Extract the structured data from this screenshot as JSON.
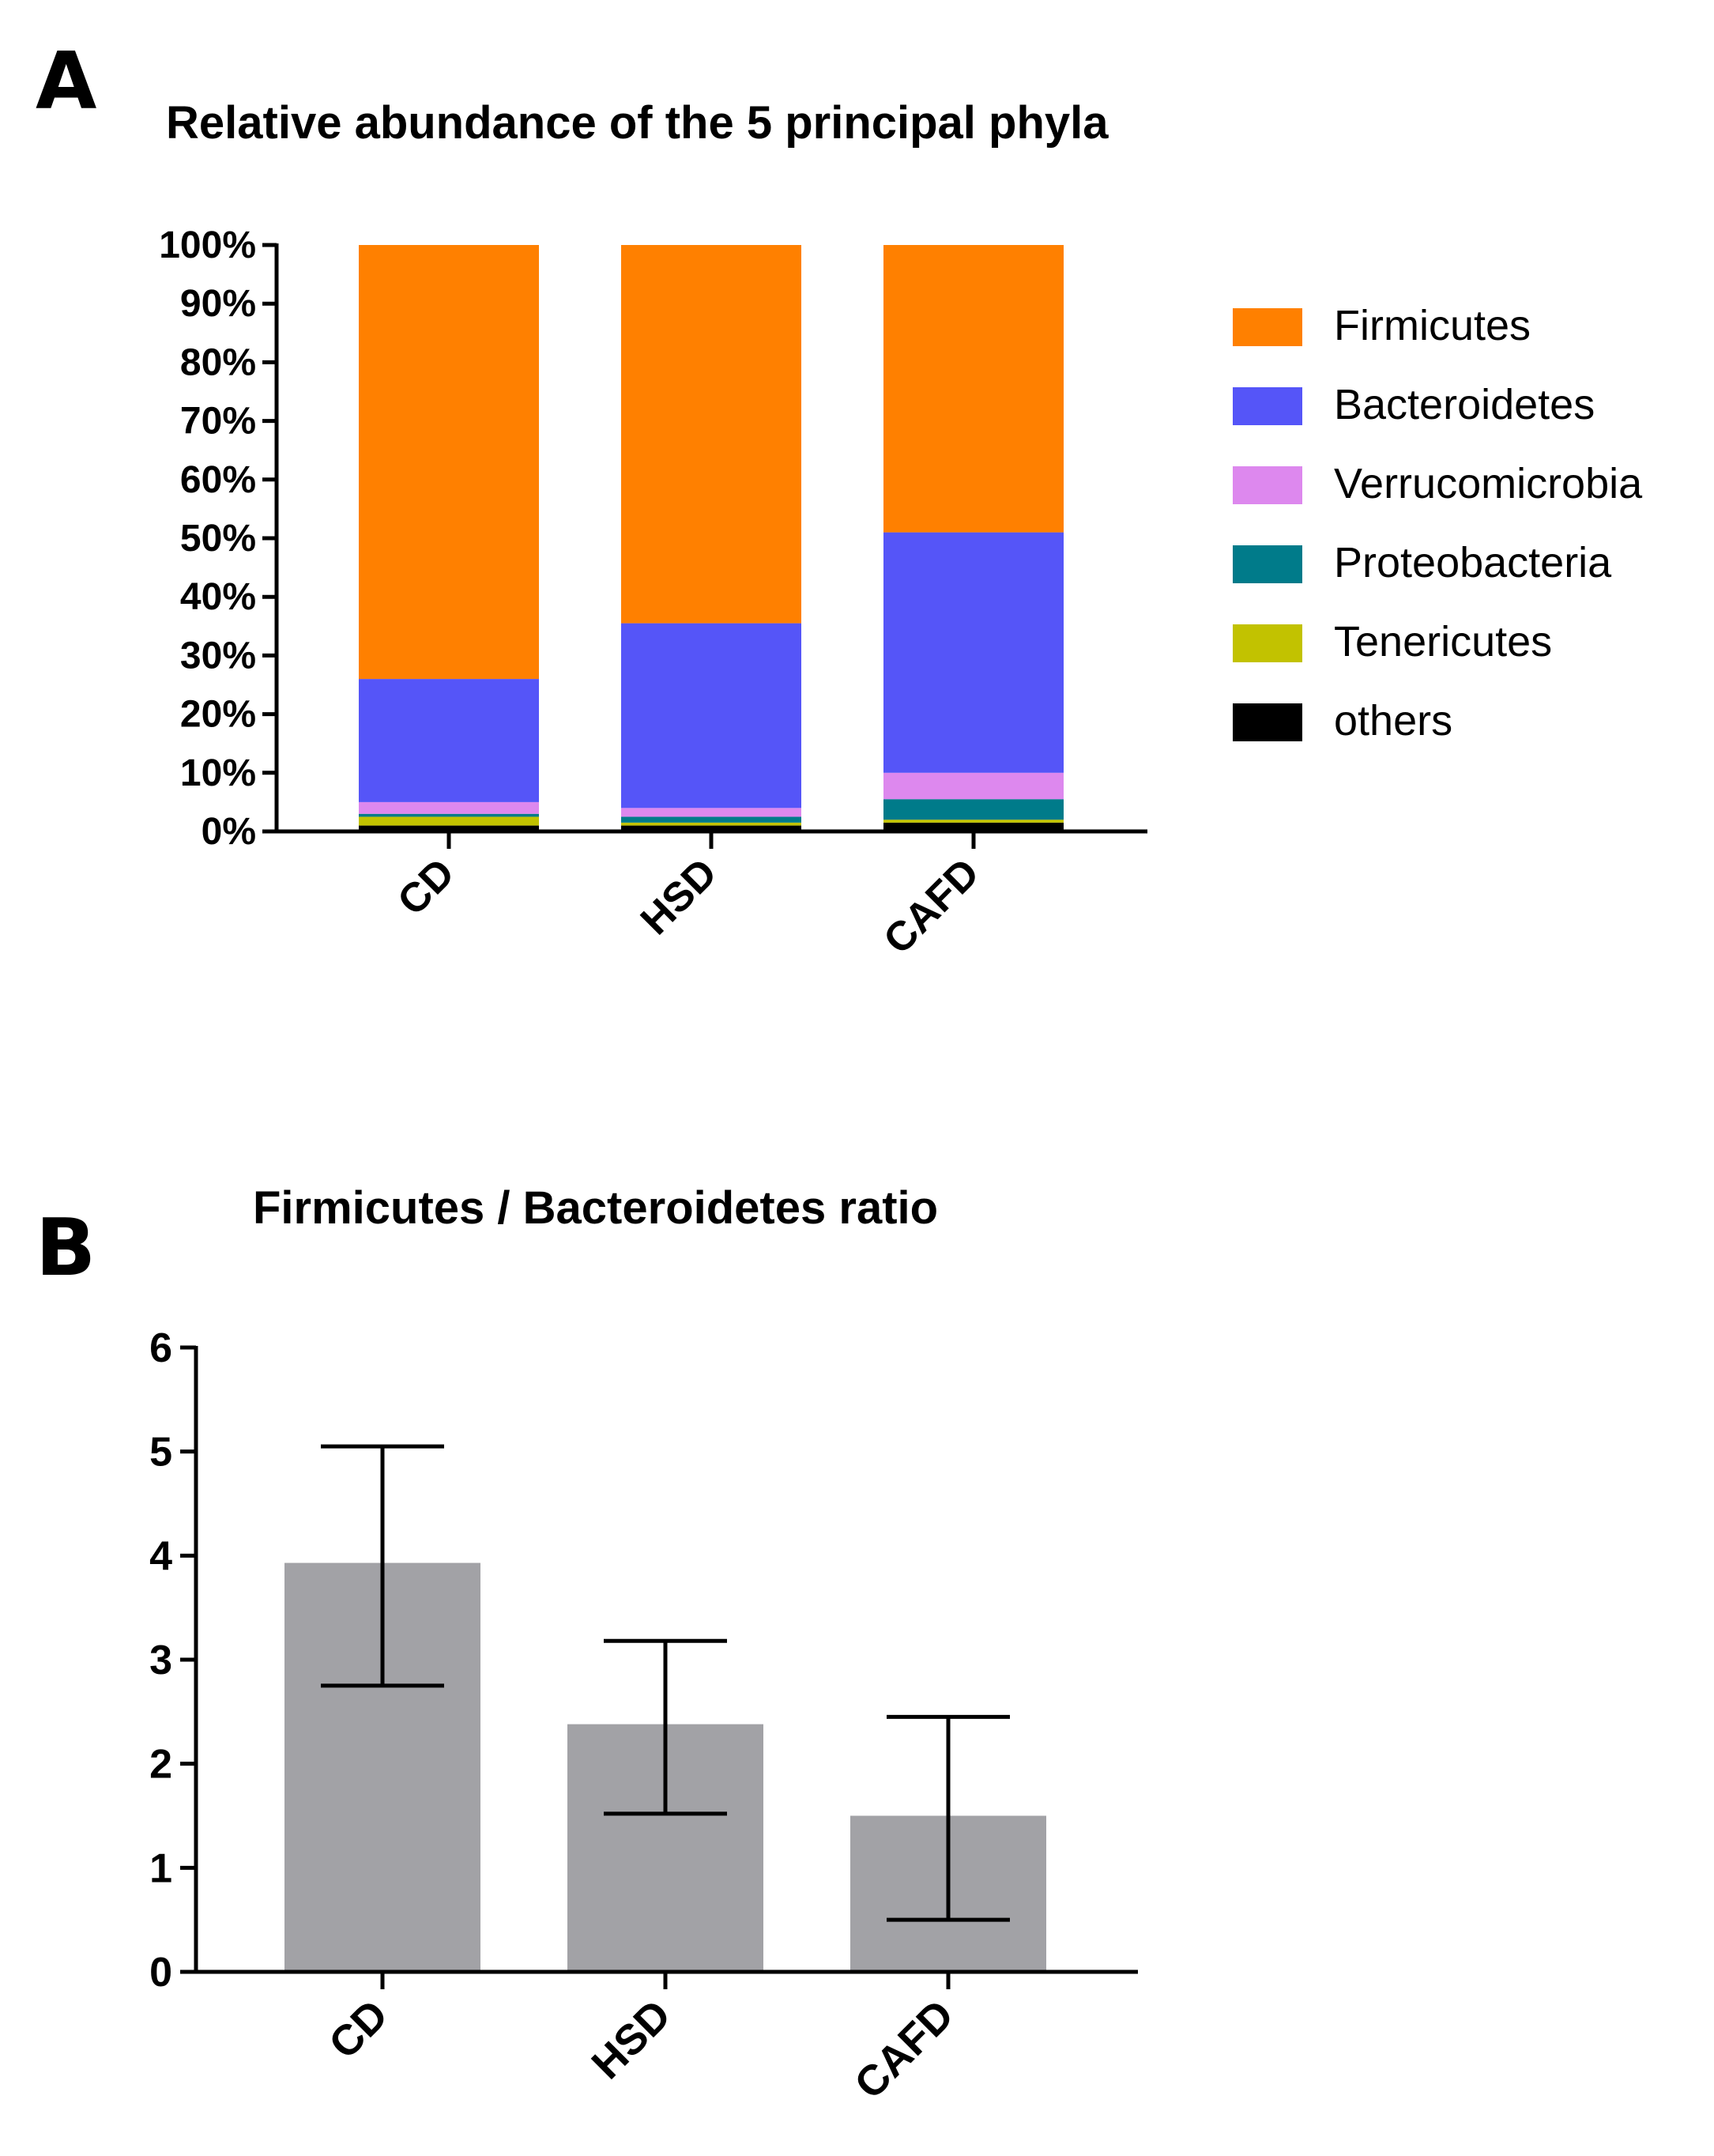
{
  "chart_data": [
    {
      "panel": "A",
      "type": "bar",
      "stacked": true,
      "title": "Relative abundance of the 5 principal phyla",
      "categories": [
        "CD",
        "HSD",
        "CAFD"
      ],
      "y_tick_labels": [
        "0%",
        "10%",
        "20%",
        "30%",
        "40%",
        "50%",
        "60%",
        "70%",
        "80%",
        "90%",
        "100%"
      ],
      "ylim": [
        0,
        100
      ],
      "legend_position": "right",
      "series": [
        {
          "name": "others",
          "color": "#000000",
          "values": [
            1.0,
            1.0,
            1.5
          ]
        },
        {
          "name": "Tenericutes",
          "color": "#c2c200",
          "values": [
            1.5,
            0.5,
            0.5
          ]
        },
        {
          "name": "Proteobacteria",
          "color": "#007b8a",
          "values": [
            0.5,
            1.0,
            3.5
          ]
        },
        {
          "name": "Verrucomicrobia",
          "color": "#dd88ee",
          "values": [
            2.0,
            1.5,
            4.5
          ]
        },
        {
          "name": "Bacteroidetes",
          "color": "#5555f8",
          "values": [
            21.0,
            31.5,
            41.0
          ]
        },
        {
          "name": "Firmicutes",
          "color": "#ff8000",
          "values": [
            74.0,
            64.5,
            49.0
          ]
        }
      ],
      "legend_order": [
        "Firmicutes",
        "Bacteroidetes",
        "Verrucomicrobia",
        "Proteobacteria",
        "Tenericutes",
        "others"
      ]
    },
    {
      "panel": "B",
      "type": "bar",
      "title": "Firmicutes / Bacteroidetes ratio",
      "categories": [
        "CD",
        "HSD",
        "CAFD"
      ],
      "values": [
        3.93,
        2.38,
        1.5
      ],
      "error_low": [
        2.75,
        1.52,
        0.5
      ],
      "error_high": [
        5.05,
        3.18,
        2.45
      ],
      "bar_color": "#a2a2a6",
      "y_tick_labels": [
        "0",
        "1",
        "2",
        "3",
        "4",
        "5",
        "6"
      ],
      "ylim": [
        0,
        6
      ]
    }
  ]
}
